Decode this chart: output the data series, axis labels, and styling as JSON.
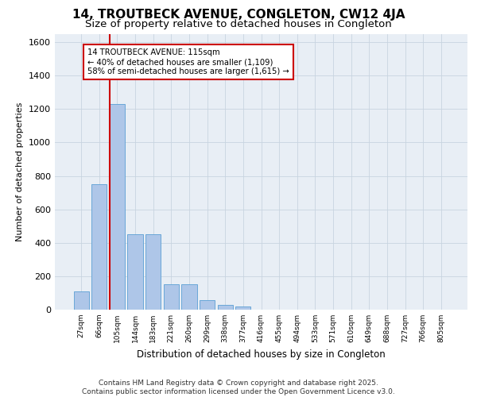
{
  "title": "14, TROUTBECK AVENUE, CONGLETON, CW12 4JA",
  "subtitle": "Size of property relative to detached houses in Congleton",
  "xlabel": "Distribution of detached houses by size in Congleton",
  "ylabel": "Number of detached properties",
  "categories": [
    "27sqm",
    "66sqm",
    "105sqm",
    "144sqm",
    "183sqm",
    "221sqm",
    "260sqm",
    "299sqm",
    "338sqm",
    "377sqm",
    "416sqm",
    "455sqm",
    "494sqm",
    "533sqm",
    "571sqm",
    "610sqm",
    "649sqm",
    "688sqm",
    "727sqm",
    "766sqm",
    "805sqm"
  ],
  "values": [
    110,
    750,
    1230,
    450,
    450,
    150,
    150,
    55,
    30,
    18,
    0,
    0,
    0,
    0,
    0,
    0,
    0,
    0,
    0,
    0,
    0
  ],
  "bar_color": "#aec6e8",
  "bar_edge_color": "#5a9fd4",
  "vline_bar_index": 2,
  "vline_color": "#cc0000",
  "annotation_text": "14 TROUTBECK AVENUE: 115sqm\n← 40% of detached houses are smaller (1,109)\n58% of semi-detached houses are larger (1,615) →",
  "annotation_box_color": "#cc0000",
  "ylim": [
    0,
    1650
  ],
  "yticks": [
    0,
    200,
    400,
    600,
    800,
    1000,
    1200,
    1400,
    1600
  ],
  "plot_bg_color": "#e8eef5",
  "footer": "Contains HM Land Registry data © Crown copyright and database right 2025.\nContains public sector information licensed under the Open Government Licence v3.0.",
  "title_fontsize": 11,
  "subtitle_fontsize": 9.5,
  "footer_fontsize": 6.5
}
